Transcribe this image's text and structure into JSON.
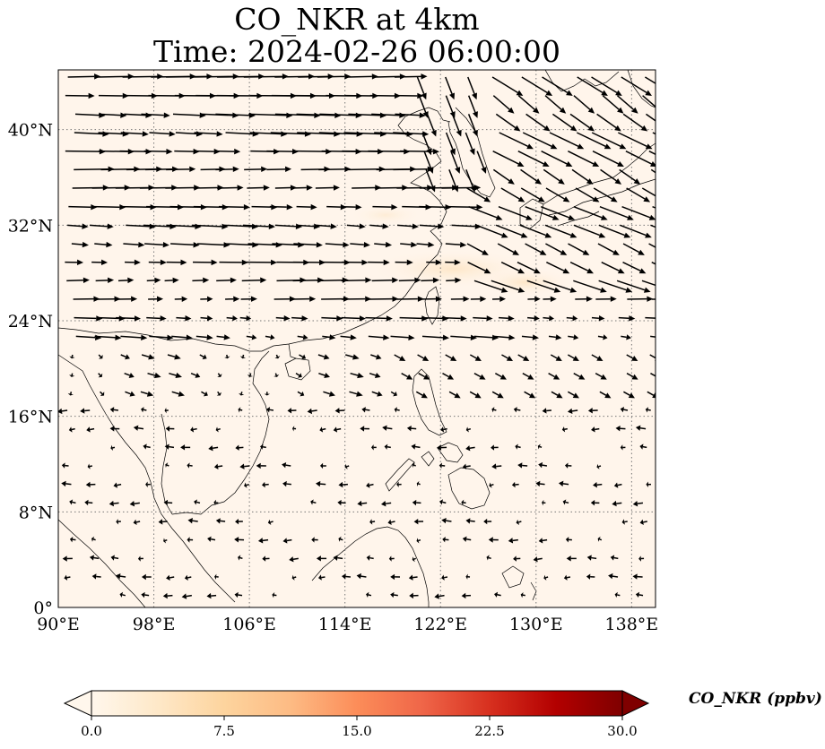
{
  "title": {
    "line1": "CO_NKR at 4km",
    "line2": "Time: 2024-02-26 06:00:00"
  },
  "map": {
    "projection": "PlateCarree",
    "lon_range": [
      90,
      140
    ],
    "lat_range": [
      0,
      45
    ],
    "lon_ticks": [
      90,
      98,
      106,
      114,
      122,
      130,
      138
    ],
    "lon_tick_labels": [
      "90°E",
      "98°E",
      "106°E",
      "114°E",
      "122°E",
      "130°E",
      "138°E"
    ],
    "lat_ticks": [
      0,
      8,
      16,
      24,
      32,
      40
    ],
    "lat_tick_labels": [
      "0°",
      "8°N",
      "16°N",
      "24°N",
      "32°N",
      "40°N"
    ],
    "gridlines": "dotted gray",
    "background_color": "#fff5eb",
    "field": "CO_NKR concentration, near 0 ppbv everywhere; faint plume about 26–28°N, 119–135°E",
    "wind_vectors": "black arrows; westerlies north of 22°N, weak easterlies south of 18°N"
  },
  "colorbar": {
    "label": "CO_NKR (ppbv)",
    "vmin": 0.0,
    "vmax": 30.0,
    "ticks": [
      0.0,
      7.5,
      15.0,
      22.5,
      30.0
    ],
    "tick_labels": [
      "0.0",
      "7.5",
      "15.0",
      "22.5",
      "30.0"
    ],
    "colormap": "OrRd",
    "extend": "both",
    "colors": [
      "#fff7ec",
      "#fee8c8",
      "#fdd49e",
      "#fdbb84",
      "#fc8d59",
      "#ef6548",
      "#d7301f",
      "#b30000",
      "#7f0000"
    ]
  }
}
